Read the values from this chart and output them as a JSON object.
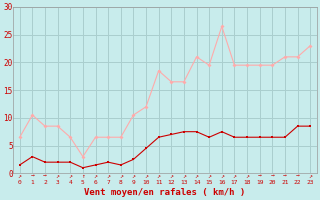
{
  "x": [
    0,
    1,
    2,
    3,
    4,
    5,
    6,
    7,
    8,
    9,
    10,
    11,
    12,
    13,
    14,
    15,
    16,
    17,
    18,
    19,
    20,
    21,
    22,
    23
  ],
  "vent_moyen": [
    1.5,
    3.0,
    2.0,
    2.0,
    2.0,
    1.0,
    1.5,
    2.0,
    1.5,
    2.5,
    4.5,
    6.5,
    7.0,
    7.5,
    7.5,
    6.5,
    7.5,
    6.5,
    6.5,
    6.5,
    6.5,
    6.5,
    8.5,
    8.5
  ],
  "rafales": [
    6.5,
    10.5,
    8.5,
    8.5,
    6.5,
    3.0,
    6.5,
    6.5,
    6.5,
    10.5,
    12.0,
    18.5,
    16.5,
    16.5,
    21.0,
    19.5,
    26.5,
    19.5,
    19.5,
    19.5,
    19.5,
    21.0,
    21.0,
    23.0
  ],
  "color_moyen": "#cc0000",
  "color_rafales": "#ffaaaa",
  "bg_color": "#c8ecec",
  "grid_color": "#aacece",
  "xlabel": "Vent moyen/en rafales ( km/h )",
  "ylim": [
    0,
    30
  ],
  "yticks": [
    0,
    5,
    10,
    15,
    20,
    25,
    30
  ],
  "xlim": [
    -0.5,
    23.5
  ],
  "arrows": [
    "↗",
    "→",
    "→",
    "↗",
    "↗",
    "↑",
    "↗",
    "↗",
    "↗",
    "↗",
    "↗",
    "↗",
    "↗",
    "↗",
    "↗",
    "↗",
    "↗",
    "↗",
    "↗",
    "→",
    "→",
    "→",
    "→",
    "↗"
  ]
}
